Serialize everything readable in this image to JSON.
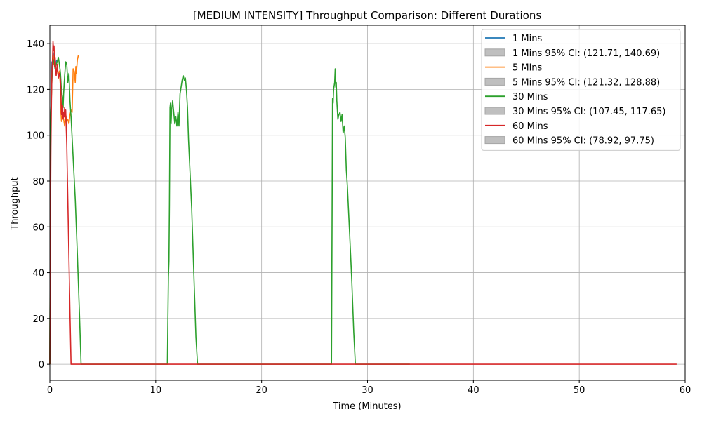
{
  "chart_data": {
    "type": "line",
    "title": "[MEDIUM INTENSITY] Throughput Comparison: Different Durations",
    "xlabel": "Time (Minutes)",
    "ylabel": "Throughput",
    "xlim": [
      0,
      60
    ],
    "ylim": [
      -7,
      148
    ],
    "xticks": [
      0,
      10,
      20,
      30,
      40,
      50,
      60
    ],
    "yticks": [
      0,
      20,
      40,
      60,
      80,
      100,
      120,
      140
    ],
    "grid": true,
    "legend_position": "top-right",
    "series": [
      {
        "name": "1 Mins",
        "ci_label": "1 Mins 95% CI: (121.71, 140.69)",
        "color": "#1f77b4",
        "points": [
          [
            0,
            0
          ],
          [
            0.05,
            70
          ],
          [
            0.1,
            105
          ],
          [
            0.15,
            124
          ],
          [
            0.2,
            132
          ],
          [
            0.25,
            128
          ],
          [
            0.3,
            134
          ],
          [
            0.35,
            131
          ],
          [
            0.4,
            136
          ],
          [
            0.45,
            130
          ],
          [
            0.5,
            129
          ],
          [
            0.55,
            132
          ],
          [
            0.6,
            131
          ],
          [
            0.65,
            133
          ]
        ]
      },
      {
        "name": "5 Mins",
        "ci_label": "5 Mins 95% CI: (121.32, 128.88)",
        "color": "#ff7f0e",
        "points": [
          [
            0,
            0
          ],
          [
            0.05,
            80
          ],
          [
            0.1,
            108
          ],
          [
            0.2,
            126
          ],
          [
            0.3,
            135
          ],
          [
            0.4,
            131
          ],
          [
            0.5,
            133
          ],
          [
            0.6,
            127
          ],
          [
            0.7,
            130
          ],
          [
            0.8,
            125
          ],
          [
            0.9,
            128
          ],
          [
            1.0,
            121
          ],
          [
            1.05,
            110
          ],
          [
            1.1,
            106
          ],
          [
            1.2,
            109
          ],
          [
            1.3,
            107
          ],
          [
            1.4,
            104
          ],
          [
            1.5,
            109
          ],
          [
            1.6,
            106
          ],
          [
            1.7,
            107
          ],
          [
            1.8,
            105
          ],
          [
            1.9,
            109
          ],
          [
            2.0,
            111
          ],
          [
            2.1,
            110
          ],
          [
            2.2,
            129
          ],
          [
            2.3,
            128
          ],
          [
            2.4,
            123
          ],
          [
            2.45,
            130
          ],
          [
            2.5,
            127
          ],
          [
            2.6,
            133
          ],
          [
            2.7,
            135
          ]
        ]
      },
      {
        "name": "30 Mins",
        "ci_label": "30 Mins 95% CI: (107.45, 117.65)",
        "color": "#2ca02c",
        "points": [
          [
            0,
            0
          ],
          [
            0.05,
            85
          ],
          [
            0.1,
            110
          ],
          [
            0.2,
            125
          ],
          [
            0.3,
            131
          ],
          [
            0.4,
            133
          ],
          [
            0.5,
            129
          ],
          [
            0.6,
            131
          ],
          [
            0.7,
            132
          ],
          [
            0.8,
            134
          ],
          [
            0.9,
            131
          ],
          [
            1.0,
            127
          ],
          [
            1.1,
            119
          ],
          [
            1.2,
            116
          ],
          [
            1.25,
            112
          ],
          [
            1.3,
            118
          ],
          [
            1.4,
            126
          ],
          [
            1.5,
            132
          ],
          [
            1.6,
            131
          ],
          [
            1.7,
            123
          ],
          [
            1.8,
            127
          ],
          [
            1.9,
            115
          ],
          [
            2.0,
            108
          ],
          [
            2.2,
            90
          ],
          [
            2.4,
            72
          ],
          [
            2.6,
            48
          ],
          [
            2.8,
            22
          ],
          [
            2.95,
            0
          ],
          [
            11.1,
            0
          ],
          [
            11.2,
            38
          ],
          [
            11.25,
            45
          ],
          [
            11.3,
            70
          ],
          [
            11.35,
            112
          ],
          [
            11.4,
            114
          ],
          [
            11.45,
            105
          ],
          [
            11.5,
            111
          ],
          [
            11.6,
            115
          ],
          [
            11.7,
            110
          ],
          [
            11.8,
            105
          ],
          [
            11.9,
            108
          ],
          [
            12.0,
            104
          ],
          [
            12.1,
            110
          ],
          [
            12.2,
            104
          ],
          [
            12.3,
            118
          ],
          [
            12.4,
            121
          ],
          [
            12.5,
            124
          ],
          [
            12.6,
            126
          ],
          [
            12.7,
            124
          ],
          [
            12.8,
            125
          ],
          [
            12.9,
            120
          ],
          [
            13.0,
            112
          ],
          [
            13.1,
            98
          ],
          [
            13.2,
            88
          ],
          [
            13.4,
            68
          ],
          [
            13.6,
            40
          ],
          [
            13.8,
            12
          ],
          [
            13.95,
            0
          ],
          [
            26.6,
            0
          ],
          [
            26.65,
            60
          ],
          [
            26.7,
            116
          ],
          [
            26.75,
            114
          ],
          [
            26.8,
            120
          ],
          [
            26.9,
            123
          ],
          [
            26.95,
            129
          ],
          [
            27.0,
            121
          ],
          [
            27.05,
            123
          ],
          [
            27.1,
            115
          ],
          [
            27.2,
            107
          ],
          [
            27.3,
            109
          ],
          [
            27.4,
            110
          ],
          [
            27.5,
            106
          ],
          [
            27.6,
            109
          ],
          [
            27.7,
            101
          ],
          [
            27.8,
            104
          ],
          [
            27.9,
            99
          ],
          [
            28.0,
            85
          ],
          [
            28.1,
            78
          ],
          [
            28.3,
            58
          ],
          [
            28.5,
            38
          ],
          [
            28.7,
            14
          ],
          [
            28.85,
            0
          ],
          [
            34,
            0
          ]
        ]
      },
      {
        "name": "60 Mins",
        "ci_label": "60 Mins 95% CI: (78.92, 97.75)",
        "color": "#d62728",
        "points": [
          [
            0,
            0
          ],
          [
            0.05,
            55
          ],
          [
            0.1,
            95
          ],
          [
            0.15,
            115
          ],
          [
            0.2,
            128
          ],
          [
            0.25,
            133
          ],
          [
            0.3,
            141
          ],
          [
            0.35,
            137
          ],
          [
            0.4,
            139
          ],
          [
            0.45,
            130
          ],
          [
            0.5,
            134
          ],
          [
            0.55,
            128
          ],
          [
            0.6,
            126
          ],
          [
            0.7,
            131
          ],
          [
            0.8,
            125
          ],
          [
            0.9,
            127
          ],
          [
            1.0,
            124
          ],
          [
            1.05,
            118
          ],
          [
            1.1,
            109
          ],
          [
            1.15,
            111
          ],
          [
            1.2,
            113
          ],
          [
            1.25,
            107
          ],
          [
            1.3,
            110
          ],
          [
            1.35,
            108
          ],
          [
            1.4,
            112
          ],
          [
            1.45,
            109
          ],
          [
            1.5,
            111
          ],
          [
            1.6,
            96
          ],
          [
            1.7,
            72
          ],
          [
            1.8,
            46
          ],
          [
            1.9,
            22
          ],
          [
            2.0,
            0
          ],
          [
            59.2,
            0
          ]
        ]
      }
    ]
  }
}
